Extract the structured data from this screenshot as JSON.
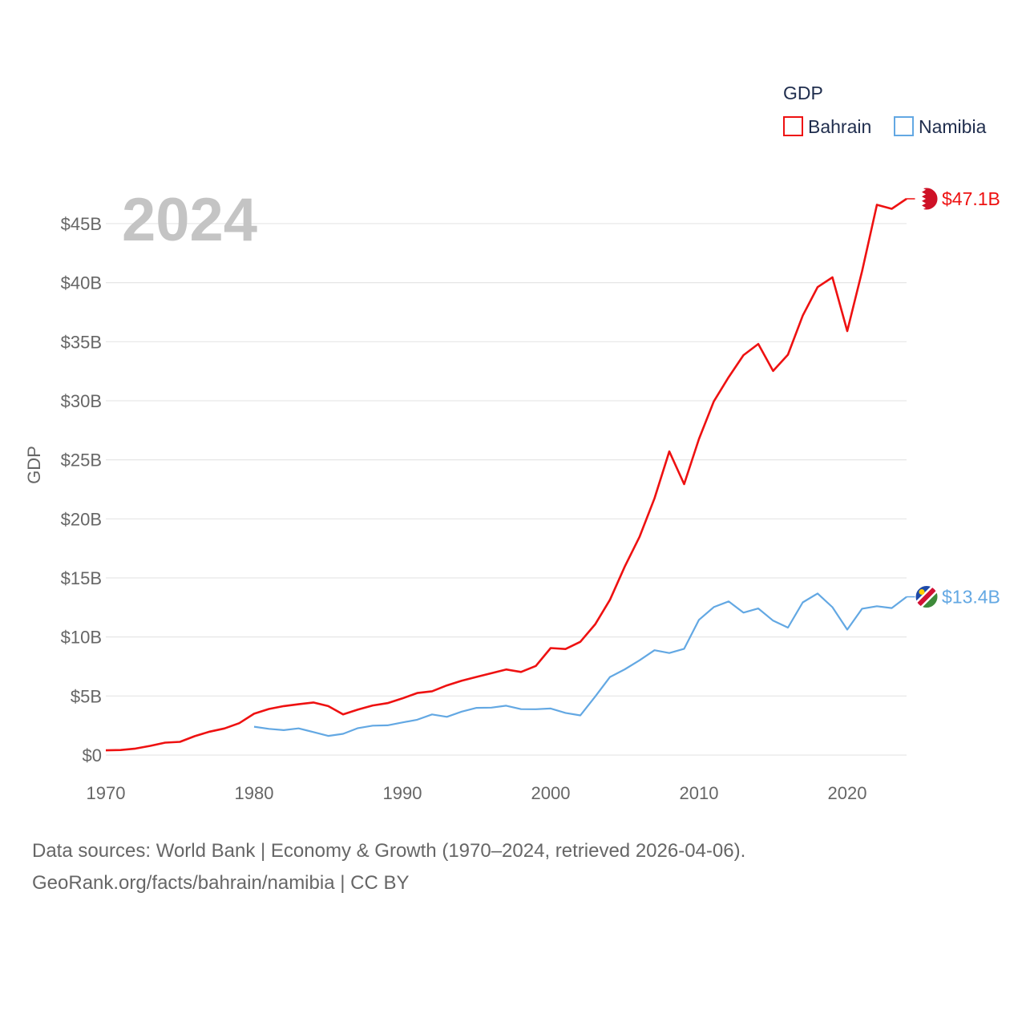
{
  "chart_data": {
    "type": "line",
    "title": "",
    "current_year_label": "2024",
    "xlabel": "",
    "ylabel": "GDP",
    "legend_title": "GDP",
    "legend_position": "top-right",
    "xlim": [
      1970,
      2024
    ],
    "ylim": [
      0,
      47.1
    ],
    "x_ticks": [
      1970,
      1980,
      1990,
      2000,
      2010,
      2020
    ],
    "y_ticks": [
      {
        "value": 0,
        "label": "$0"
      },
      {
        "value": 5,
        "label": "$5B"
      },
      {
        "value": 10,
        "label": "$10B"
      },
      {
        "value": 15,
        "label": "$15B"
      },
      {
        "value": 20,
        "label": "$20B"
      },
      {
        "value": 25,
        "label": "$25B"
      },
      {
        "value": 30,
        "label": "$30B"
      },
      {
        "value": 35,
        "label": "$35B"
      },
      {
        "value": 40,
        "label": "$40B"
      },
      {
        "value": 45,
        "label": "$45B"
      }
    ],
    "grid": true,
    "series": [
      {
        "name": "Bahrain",
        "color": "#ee1111",
        "flag_icon": "bahrain-flag-icon",
        "end_label": "$47.1B",
        "x": [
          1970,
          1971,
          1972,
          1973,
          1974,
          1975,
          1976,
          1977,
          1978,
          1979,
          1980,
          1981,
          1982,
          1983,
          1984,
          1985,
          1986,
          1987,
          1988,
          1989,
          1990,
          1991,
          1992,
          1993,
          1994,
          1995,
          1996,
          1997,
          1998,
          1999,
          2000,
          2001,
          2002,
          2003,
          2004,
          2005,
          2006,
          2007,
          2008,
          2009,
          2010,
          2011,
          2012,
          2013,
          2014,
          2015,
          2016,
          2017,
          2018,
          2019,
          2020,
          2021,
          2022,
          2023,
          2024
        ],
        "values": [
          0.4,
          0.43,
          0.55,
          0.78,
          1.05,
          1.12,
          1.6,
          1.98,
          2.25,
          2.7,
          3.5,
          3.9,
          4.15,
          4.3,
          4.45,
          4.15,
          3.45,
          3.85,
          4.2,
          4.4,
          4.8,
          5.25,
          5.4,
          5.9,
          6.3,
          6.62,
          6.93,
          7.25,
          7.04,
          7.55,
          9.06,
          8.98,
          9.59,
          11.07,
          13.15,
          15.97,
          18.5,
          21.73,
          25.71,
          22.94,
          26.77,
          29.94,
          31.99,
          33.86,
          34.81,
          32.52,
          33.9,
          37.21,
          39.62,
          40.45,
          35.9,
          40.97,
          46.59,
          46.25,
          47.1
        ]
      },
      {
        "name": "Namibia",
        "color": "#63a8e3",
        "flag_icon": "namibia-flag-icon",
        "end_label": "$13.4B",
        "x": [
          1980,
          1981,
          1982,
          1983,
          1984,
          1985,
          1986,
          1987,
          1988,
          1989,
          1990,
          1991,
          1992,
          1993,
          1994,
          1995,
          1996,
          1997,
          1998,
          1999,
          2000,
          2001,
          2002,
          2003,
          2004,
          2005,
          2006,
          2007,
          2008,
          2009,
          2010,
          2011,
          2012,
          2013,
          2014,
          2015,
          2016,
          2017,
          2018,
          2019,
          2020,
          2021,
          2022,
          2023,
          2024
        ],
        "values": [
          2.4,
          2.22,
          2.11,
          2.26,
          1.95,
          1.62,
          1.8,
          2.28,
          2.49,
          2.52,
          2.76,
          2.99,
          3.44,
          3.24,
          3.68,
          4.0,
          4.02,
          4.18,
          3.89,
          3.88,
          3.94,
          3.57,
          3.36,
          4.95,
          6.61,
          7.26,
          8.03,
          8.88,
          8.64,
          9.0,
          11.45,
          12.53,
          13.01,
          12.06,
          12.41,
          11.38,
          10.79,
          12.93,
          13.68,
          12.52,
          10.62,
          12.39,
          12.6,
          12.45,
          13.4
        ]
      }
    ]
  },
  "source": {
    "line1": "Data sources: World Bank | Economy & Growth (1970–2024, retrieved 2026-04-06).",
    "line2": "GeoRank.org/facts/bahrain/namibia | CC BY"
  }
}
